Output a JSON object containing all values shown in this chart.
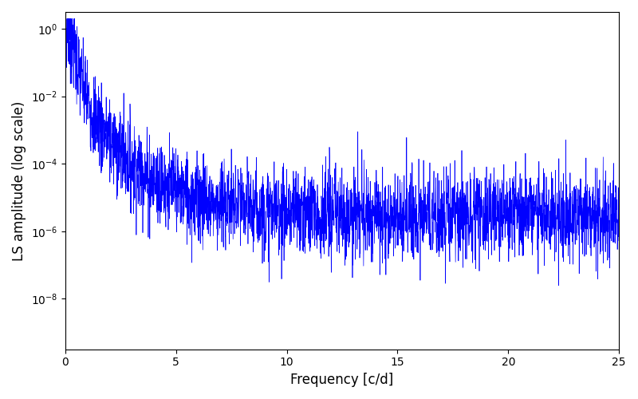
{
  "title": "",
  "xlabel": "Frequency [c/d]",
  "ylabel": "LS amplitude (log scale)",
  "xlim": [
    0,
    25
  ],
  "ylim_log": [
    -9.5,
    0.5
  ],
  "line_color": "#0000ff",
  "line_width": 0.5,
  "figsize": [
    8.0,
    5.0
  ],
  "dpi": 100,
  "freq_max": 25.0,
  "n_points": 3000,
  "seed": 7,
  "alpha": 4.0,
  "base_level": 3e-06,
  "noise_sigma": 1.5,
  "peak_freq": 0.45,
  "peak_val": 0.9
}
